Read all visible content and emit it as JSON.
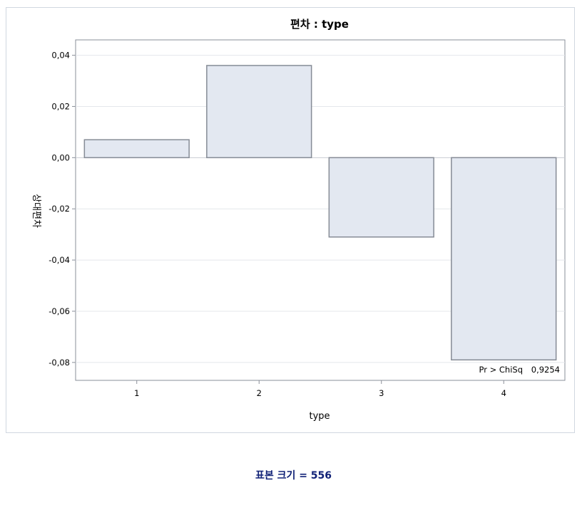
{
  "chart_data": {
    "type": "bar",
    "title": "편차 : type",
    "xlabel": "type",
    "ylabel": "상대편차",
    "categories": [
      "1",
      "2",
      "3",
      "4"
    ],
    "values": [
      0.007,
      0.036,
      -0.031,
      -0.079
    ],
    "ylim": [
      -0.087,
      0.046
    ],
    "yticks": [
      0.04,
      0.02,
      0.0,
      -0.02,
      -0.04,
      -0.06,
      -0.08
    ],
    "ytick_labels": [
      "0,04",
      "0,02",
      "0,00",
      "-0,02",
      "-0,04",
      "-0,06",
      "-0,08"
    ],
    "grid": true,
    "bar_color": "#e3e8f1",
    "bar_edge_color": "#868c96",
    "annotation": {
      "label": "Pr > ChiSq",
      "value": "0,9254",
      "placement": "bottom-right"
    }
  },
  "footnote": "표본 크기 = 556"
}
